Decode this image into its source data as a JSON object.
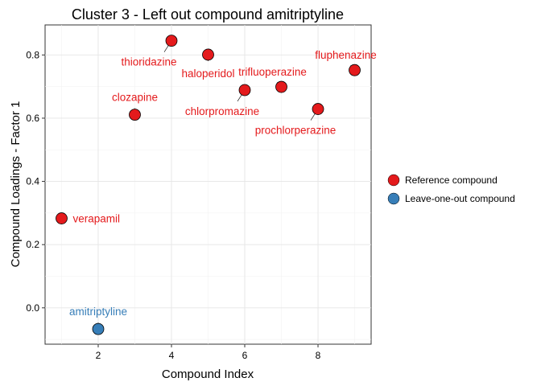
{
  "chart_data": {
    "type": "scatter",
    "title": "Cluster 3 - Left out compound amitriptyline",
    "xlabel": "Compound Index",
    "ylabel": "Compound Loadings - Factor 1",
    "xlim": [
      0.55,
      9.45
    ],
    "ylim": [
      -0.115,
      0.895
    ],
    "xticks": [
      2,
      4,
      6,
      8
    ],
    "yticks": [
      0.0,
      0.2,
      0.4,
      0.6,
      0.8
    ],
    "ytick_labels": [
      "0.0",
      "0.2",
      "0.4",
      "0.6",
      "0.8"
    ],
    "grid": true,
    "legend_position": "right",
    "colors": {
      "reference": "#e41a1c",
      "leave_one_out": "#377eb8"
    },
    "series": [
      {
        "name": "Reference compound",
        "color": "#e41a1c"
      },
      {
        "name": "Leave-one-out compound",
        "color": "#377eb8"
      }
    ],
    "points": [
      {
        "x": 1,
        "y": 0.283,
        "label": "verapamil",
        "series": 0,
        "label_pos": "right"
      },
      {
        "x": 2,
        "y": -0.067,
        "label": "amitriptyline",
        "series": 1,
        "label_pos": "above"
      },
      {
        "x": 3,
        "y": 0.611,
        "label": "clozapine",
        "series": 0,
        "label_pos": "above"
      },
      {
        "x": 4,
        "y": 0.845,
        "label": "thioridazine",
        "series": 0,
        "label_pos": "below-left"
      },
      {
        "x": 5,
        "y": 0.801,
        "label": "haloperidol",
        "series": 0,
        "label_pos": "below"
      },
      {
        "x": 6,
        "y": 0.689,
        "label": "chlorpromazine",
        "series": 0,
        "label_pos": "below-left"
      },
      {
        "x": 7,
        "y": 0.699,
        "label": "trifluoperazine",
        "series": 0,
        "label_pos": "above-left"
      },
      {
        "x": 8,
        "y": 0.629,
        "label": "prochlorperazine",
        "series": 0,
        "label_pos": "below-left"
      },
      {
        "x": 9,
        "y": 0.752,
        "label": "fluphenazine",
        "series": 0,
        "label_pos": "above-left"
      }
    ]
  }
}
